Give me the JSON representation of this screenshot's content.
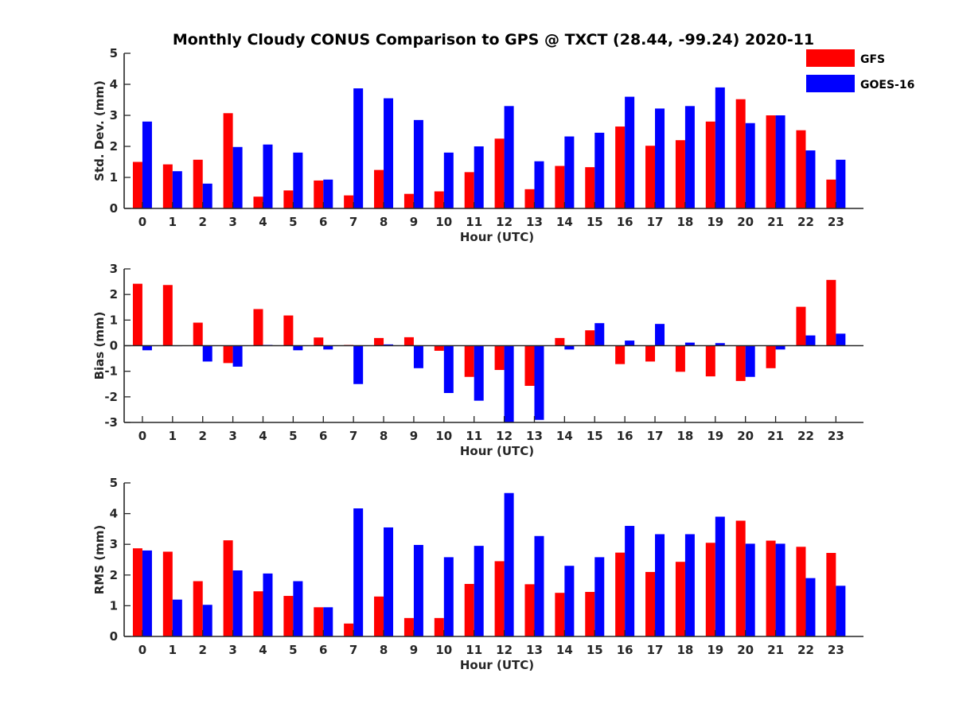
{
  "chart_data": {
    "title": "Monthly Cloudy CONUS Comparison to GPS @ TXCT (28.44, -99.24) 2020-11",
    "legend": {
      "placement": "top-right, outside plot area",
      "entries": [
        {
          "name": "GFS",
          "color": "#ff0000"
        },
        {
          "name": "GOES-16",
          "color": "#0000ff"
        }
      ]
    },
    "panels": [
      {
        "type": "bar",
        "xlabel": "Hour (UTC)",
        "ylabel": "Std. Dev. (mm)",
        "ylim": [
          0,
          5
        ],
        "yticks": [
          0,
          1,
          2,
          3,
          4,
          5
        ],
        "categories": [
          "0",
          "1",
          "2",
          "3",
          "4",
          "5",
          "6",
          "7",
          "8",
          "9",
          "10",
          "11",
          "12",
          "13",
          "14",
          "15",
          "16",
          "17",
          "18",
          "19",
          "20",
          "21",
          "22",
          "23"
        ],
        "series": [
          {
            "name": "GFS",
            "color": "#ff0000",
            "values": [
              1.5,
              1.42,
              1.57,
              3.07,
              0.38,
              0.58,
              0.9,
              0.42,
              1.24,
              0.47,
              0.55,
              1.17,
              2.25,
              0.62,
              1.37,
              1.33,
              2.64,
              2.02,
              2.2,
              2.8,
              3.52,
              3.0,
              2.52,
              0.93
            ]
          },
          {
            "name": "GOES-16",
            "color": "#0000ff",
            "values": [
              2.8,
              1.2,
              0.8,
              1.98,
              2.06,
              1.8,
              0.93,
              3.87,
              3.55,
              2.85,
              1.8,
              2.0,
              3.3,
              1.52,
              2.32,
              2.44,
              3.6,
              3.22,
              3.3,
              3.9,
              2.75,
              3.0,
              1.87,
              1.57
            ]
          }
        ]
      },
      {
        "type": "bar",
        "xlabel": "Hour (UTC)",
        "ylabel": "Bias (mm)",
        "ylim": [
          -3,
          3
        ],
        "yticks": [
          -3,
          -2,
          -1,
          0,
          1,
          2,
          3
        ],
        "categories": [
          "0",
          "1",
          "2",
          "3",
          "4",
          "5",
          "6",
          "7",
          "8",
          "9",
          "10",
          "11",
          "12",
          "13",
          "14",
          "15",
          "16",
          "17",
          "18",
          "19",
          "20",
          "21",
          "22",
          "23"
        ],
        "series": [
          {
            "name": "GFS",
            "color": "#ff0000",
            "values": [
              2.42,
              2.37,
              0.9,
              -0.68,
              1.43,
              1.18,
              0.32,
              0.03,
              0.3,
              0.33,
              -0.2,
              -1.22,
              -0.95,
              -1.57,
              0.3,
              0.6,
              -0.72,
              -0.62,
              -1.02,
              -1.2,
              -1.38,
              -0.88,
              1.52,
              2.57
            ]
          },
          {
            "name": "GOES-16",
            "color": "#0000ff",
            "values": [
              -0.18,
              0.0,
              -0.62,
              -0.82,
              0.03,
              -0.18,
              -0.15,
              -1.5,
              0.05,
              -0.88,
              -1.85,
              -2.15,
              -3.0,
              -2.9,
              -0.15,
              0.88,
              0.2,
              0.85,
              0.12,
              0.1,
              -1.22,
              -0.15,
              0.4,
              0.47
            ]
          }
        ]
      },
      {
        "type": "bar",
        "xlabel": "Hour (UTC)",
        "ylabel": "RMS (mm)",
        "ylim": [
          0,
          5
        ],
        "yticks": [
          0,
          1,
          2,
          3,
          4,
          5
        ],
        "categories": [
          "0",
          "1",
          "2",
          "3",
          "4",
          "5",
          "6",
          "7",
          "8",
          "9",
          "10",
          "11",
          "12",
          "13",
          "14",
          "15",
          "16",
          "17",
          "18",
          "19",
          "20",
          "21",
          "22",
          "23"
        ],
        "series": [
          {
            "name": "GFS",
            "color": "#ff0000",
            "values": [
              2.87,
              2.76,
              1.8,
              3.13,
              1.47,
              1.32,
              0.95,
              0.42,
              1.3,
              0.6,
              0.6,
              1.71,
              2.45,
              1.7,
              1.42,
              1.45,
              2.73,
              2.1,
              2.43,
              3.05,
              3.77,
              3.12,
              2.92,
              2.72
            ]
          },
          {
            "name": "GOES-16",
            "color": "#0000ff",
            "values": [
              2.8,
              1.2,
              1.03,
              2.15,
              2.05,
              1.8,
              0.95,
              4.17,
              3.55,
              2.98,
              2.58,
              2.95,
              4.67,
              3.27,
              2.3,
              2.58,
              3.6,
              3.33,
              3.33,
              3.9,
              3.02,
              3.02,
              1.9,
              1.65
            ]
          }
        ]
      }
    ]
  }
}
